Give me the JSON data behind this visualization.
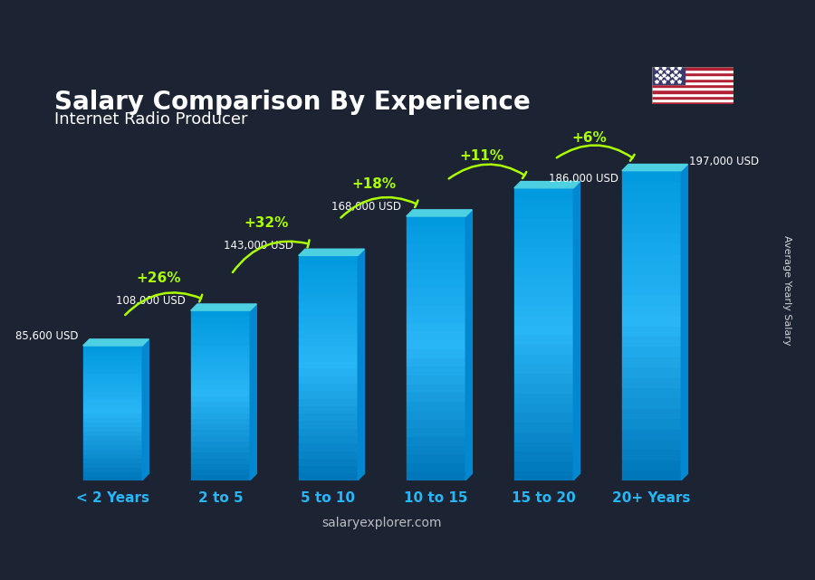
{
  "title": "Salary Comparison By Experience",
  "subtitle": "Internet Radio Producer",
  "categories": [
    "< 2 Years",
    "2 to 5",
    "5 to 10",
    "10 to 15",
    "15 to 20",
    "20+ Years"
  ],
  "values": [
    85600,
    108000,
    143000,
    168000,
    186000,
    197000
  ],
  "value_labels": [
    "85,600 USD",
    "108,000 USD",
    "143,000 USD",
    "168,000 USD",
    "186,000 USD",
    "197,000 USD"
  ],
  "pct_changes": [
    "+26%",
    "+32%",
    "+18%",
    "+11%",
    "+6%"
  ],
  "bar_color_top": "#00cfff",
  "bar_color_bottom": "#0077bb",
  "bar_color_side": "#0099dd",
  "background_color": "#1a1a2e",
  "title_color": "#ffffff",
  "subtitle_color": "#ffffff",
  "value_label_color": "#ffffff",
  "pct_color": "#aaff00",
  "xlabel_color": "#00cfff",
  "ylabel_text": "Average Yearly Salary",
  "watermark": "salaryexplorer.com",
  "ylim": [
    0,
    230000
  ]
}
